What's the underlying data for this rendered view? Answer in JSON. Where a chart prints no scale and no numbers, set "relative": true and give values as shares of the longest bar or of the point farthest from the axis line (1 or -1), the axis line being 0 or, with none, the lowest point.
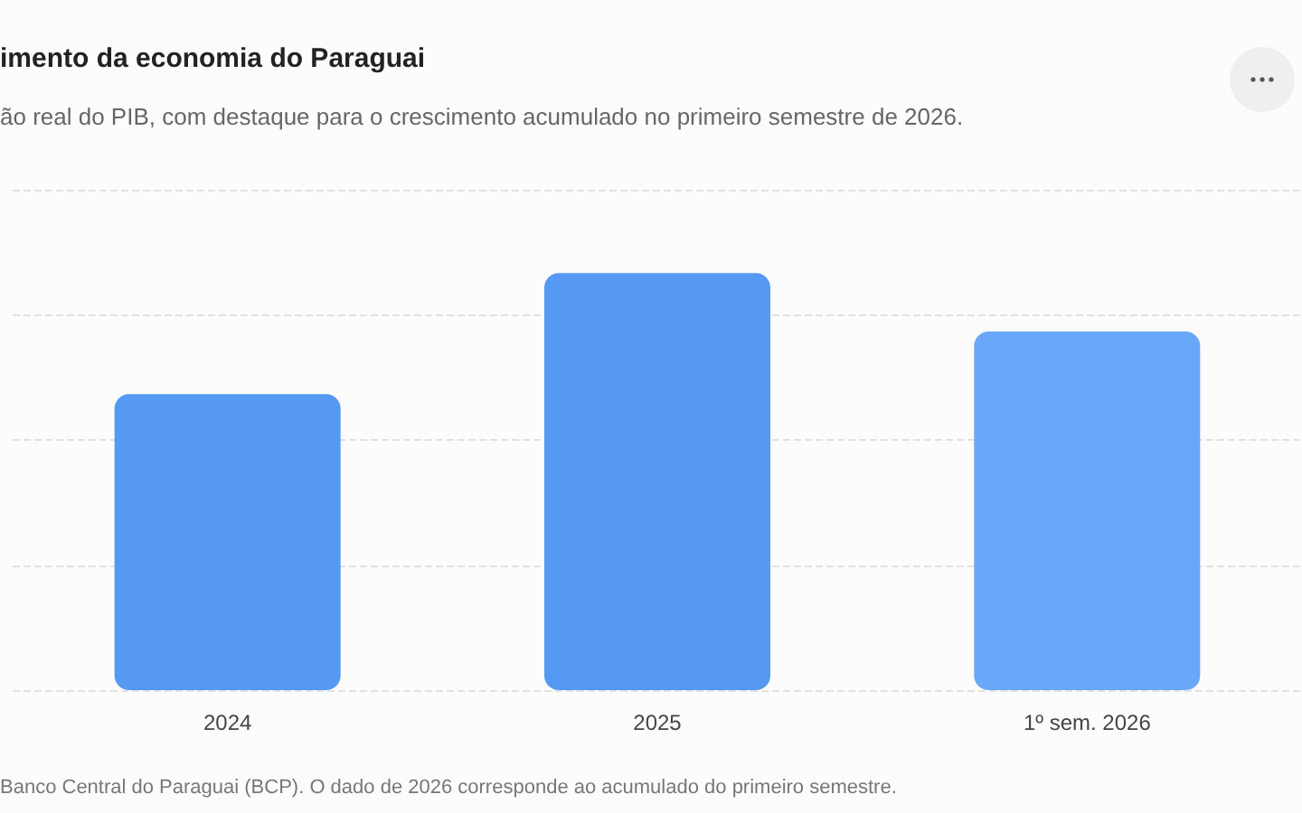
{
  "chart_data": {
    "type": "bar",
    "title": "imento da economia do Paraguai",
    "subtitle": "ão real do PIB, com destaque para o crescimento acumulado no primeiro semestre de 2026.",
    "annotations": [
      "Banco Central do Paraguai (BCP). O dado de 2026 corresponde ao acumulado do primeiro semestre."
    ],
    "categories": [
      "2024",
      "2025",
      "1º sem. 2026"
    ],
    "values": [
      0.71,
      1,
      0.86
    ],
    "colors": [
      "#5599f3",
      "#5599f3",
      "#69a8f8"
    ],
    "relative": true,
    "grid": "y"
  }
}
